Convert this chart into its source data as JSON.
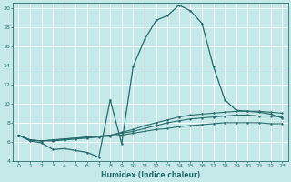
{
  "xlabel": "Humidex (Indice chaleur)",
  "bg_color": "#c5e8e8",
  "line_color": "#2a6b6b",
  "grid_color": "#ffffff",
  "xmin": -0.5,
  "xmax": 23.5,
  "ymin": 4,
  "ymax": 20.5,
  "yticks": [
    4,
    6,
    8,
    10,
    12,
    14,
    16,
    18,
    20
  ],
  "xticks": [
    0,
    1,
    2,
    3,
    4,
    5,
    6,
    7,
    8,
    9,
    10,
    11,
    12,
    13,
    14,
    15,
    16,
    17,
    18,
    19,
    20,
    21,
    22,
    23
  ],
  "line1_x": [
    0,
    1,
    2,
    3,
    4,
    5,
    6,
    7,
    8,
    9,
    10,
    11,
    12,
    13,
    14,
    15,
    16,
    17,
    18,
    19,
    20,
    21,
    22,
    23
  ],
  "line1_y": [
    6.7,
    6.1,
    5.9,
    5.2,
    5.3,
    5.1,
    4.9,
    4.4,
    10.4,
    5.8,
    13.9,
    16.7,
    18.7,
    19.2,
    20.3,
    19.7,
    18.4,
    13.9,
    10.4,
    9.3,
    9.2,
    9.1,
    8.9,
    8.5
  ],
  "line2_x": [
    0,
    1,
    2,
    3,
    4,
    5,
    6,
    7,
    8,
    9,
    10,
    11,
    12,
    13,
    14,
    15,
    16,
    17,
    18,
    19,
    20,
    21,
    22,
    23
  ],
  "line2_y": [
    6.7,
    6.2,
    6.1,
    6.2,
    6.3,
    6.4,
    6.5,
    6.6,
    6.7,
    7.0,
    7.3,
    7.7,
    8.0,
    8.3,
    8.6,
    8.8,
    8.9,
    9.0,
    9.1,
    9.2,
    9.2,
    9.2,
    9.1,
    9.0
  ],
  "line3_x": [
    0,
    1,
    2,
    3,
    4,
    5,
    6,
    7,
    8,
    9,
    10,
    11,
    12,
    13,
    14,
    15,
    16,
    17,
    18,
    19,
    20,
    21,
    22,
    23
  ],
  "line3_y": [
    6.7,
    6.2,
    6.1,
    6.2,
    6.3,
    6.4,
    6.5,
    6.6,
    6.7,
    6.9,
    7.1,
    7.4,
    7.7,
    8.0,
    8.2,
    8.4,
    8.5,
    8.6,
    8.7,
    8.8,
    8.8,
    8.7,
    8.7,
    8.6
  ],
  "line4_x": [
    0,
    1,
    2,
    3,
    4,
    5,
    6,
    7,
    8,
    9,
    10,
    11,
    12,
    13,
    14,
    15,
    16,
    17,
    18,
    19,
    20,
    21,
    22,
    23
  ],
  "line4_y": [
    6.7,
    6.2,
    6.1,
    6.1,
    6.2,
    6.3,
    6.4,
    6.5,
    6.6,
    6.7,
    6.9,
    7.1,
    7.3,
    7.4,
    7.6,
    7.7,
    7.8,
    7.9,
    8.0,
    8.0,
    8.0,
    8.0,
    7.9,
    7.9
  ]
}
